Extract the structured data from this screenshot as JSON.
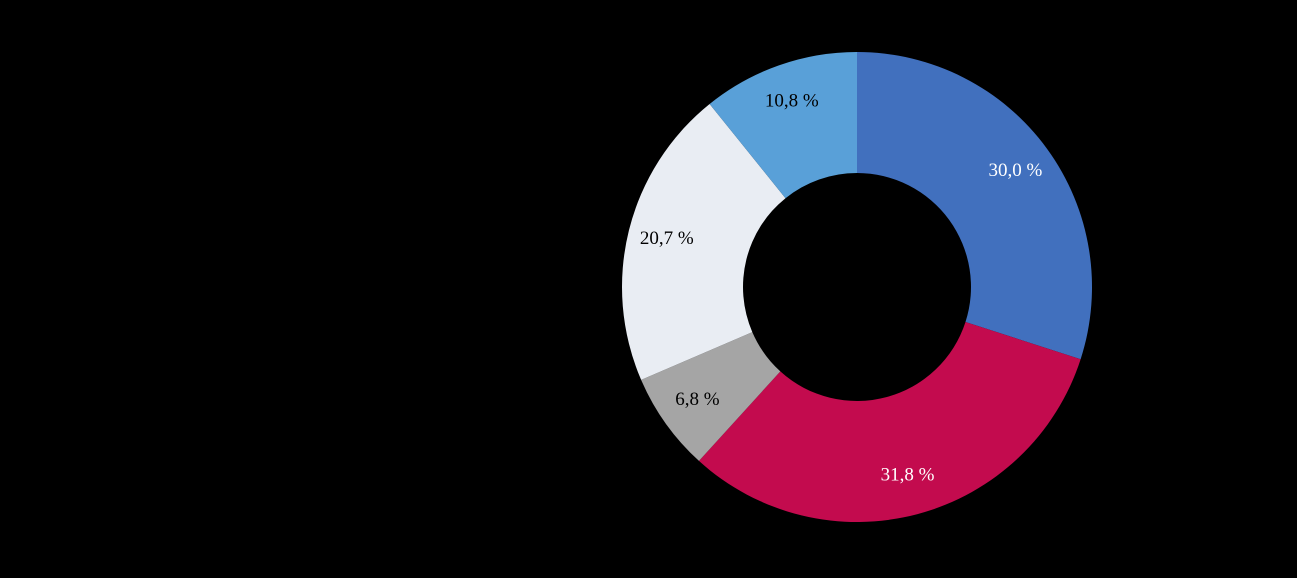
{
  "chart_data": {
    "type": "pie",
    "subtype": "donut",
    "title": "",
    "legend_position": "none",
    "background_color": "#000000",
    "start_angle_deg": 0,
    "direction": "clockwise",
    "slices": [
      {
        "value": 30.0,
        "label": "30,0 %",
        "color": "#4170BE",
        "label_color": "#FFFFFF"
      },
      {
        "value": 31.8,
        "label": "31,8 %",
        "color": "#C30B4E",
        "label_color": "#FFFFFF"
      },
      {
        "value": 6.8,
        "label": "6,8 %",
        "color": "#A5A5A5",
        "label_color": "#000000"
      },
      {
        "value": 20.7,
        "label": "20,7 %",
        "color": "#E9EDF3",
        "label_color": "#000000"
      },
      {
        "value": 10.8,
        "label": "10,8 %",
        "color": "#59A0D8",
        "label_color": "#000000"
      }
    ]
  }
}
